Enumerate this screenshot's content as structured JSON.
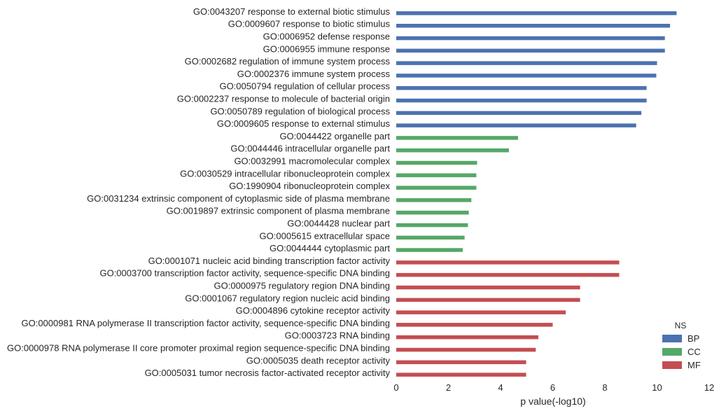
{
  "chart_data": {
    "type": "bar",
    "orientation": "horizontal",
    "xlabel": "p value(-log10)",
    "ylabel": "",
    "xlim": [
      0,
      12
    ],
    "xticks": [
      0,
      2,
      4,
      6,
      8,
      10,
      12
    ],
    "grid": false,
    "legend": {
      "title": "NS",
      "placement": "bottom-right"
    },
    "series": [
      {
        "name": "BP",
        "color": "#4c72b0"
      },
      {
        "name": "CC",
        "color": "#55a868"
      },
      {
        "name": "MF",
        "color": "#c44e52"
      }
    ],
    "categories": [
      {
        "label": "GO:0043207 response to external biotic stimulus",
        "value": 10.75,
        "ns": "BP"
      },
      {
        "label": "GO:0009607 response to biotic stimulus",
        "value": 10.5,
        "ns": "BP"
      },
      {
        "label": "GO:0006952 defense response",
        "value": 10.3,
        "ns": "BP"
      },
      {
        "label": "GO:0006955 immune response",
        "value": 10.3,
        "ns": "BP"
      },
      {
        "label": "GO:0002682 regulation of immune system process",
        "value": 10.0,
        "ns": "BP"
      },
      {
        "label": "GO:0002376 immune system process",
        "value": 9.97,
        "ns": "BP"
      },
      {
        "label": "GO:0050794 regulation of cellular process",
        "value": 9.6,
        "ns": "BP"
      },
      {
        "label": "GO:0002237 response to molecule of bacterial origin",
        "value": 9.6,
        "ns": "BP"
      },
      {
        "label": "GO:0050789 regulation of biological process",
        "value": 9.4,
        "ns": "BP"
      },
      {
        "label": "GO:0009605 response to external stimulus",
        "value": 9.2,
        "ns": "BP"
      },
      {
        "label": "GO:0044422 organelle part",
        "value": 4.67,
        "ns": "CC"
      },
      {
        "label": "GO:0044446 intracellular organelle part",
        "value": 4.32,
        "ns": "CC"
      },
      {
        "label": "GO:0032991 macromolecular complex",
        "value": 3.1,
        "ns": "CC"
      },
      {
        "label": "GO:0030529 intracellular ribonucleoprotein complex",
        "value": 3.07,
        "ns": "CC"
      },
      {
        "label": "GO:1990904 ribonucleoprotein complex",
        "value": 3.07,
        "ns": "CC"
      },
      {
        "label": "GO:0031234 extrinsic component of cytoplasmic side of plasma membrane",
        "value": 2.88,
        "ns": "CC"
      },
      {
        "label": "GO:0019897 extrinsic component of plasma membrane",
        "value": 2.78,
        "ns": "CC"
      },
      {
        "label": "GO:0044428 nuclear part",
        "value": 2.75,
        "ns": "CC"
      },
      {
        "label": "GO:0005615 extracellular space",
        "value": 2.62,
        "ns": "CC"
      },
      {
        "label": "GO:0044444 cytoplasmic part",
        "value": 2.55,
        "ns": "CC"
      },
      {
        "label": "GO:0001071 nucleic acid binding transcription factor activity",
        "value": 8.55,
        "ns": "MF"
      },
      {
        "label": "GO:0003700 transcription factor activity, sequence-specific DNA binding",
        "value": 8.55,
        "ns": "MF"
      },
      {
        "label": "GO:0000975 regulatory region DNA binding",
        "value": 7.05,
        "ns": "MF"
      },
      {
        "label": "GO:0001067 regulatory region nucleic acid binding",
        "value": 7.05,
        "ns": "MF"
      },
      {
        "label": "GO:0004896 cytokine receptor activity",
        "value": 6.5,
        "ns": "MF"
      },
      {
        "label": "GO:0000981 RNA polymerase II transcription factor activity, sequence-specific DNA binding",
        "value": 6.0,
        "ns": "MF"
      },
      {
        "label": "GO:0003723 RNA binding",
        "value": 5.45,
        "ns": "MF"
      },
      {
        "label": "GO:0000978 RNA polymerase II core promoter proximal region sequence-specific DNA binding",
        "value": 5.35,
        "ns": "MF"
      },
      {
        "label": "GO:0005035 death receptor activity",
        "value": 4.98,
        "ns": "MF"
      },
      {
        "label": "GO:0005031 tumor necrosis factor-activated receptor activity",
        "value": 4.98,
        "ns": "MF"
      }
    ]
  }
}
